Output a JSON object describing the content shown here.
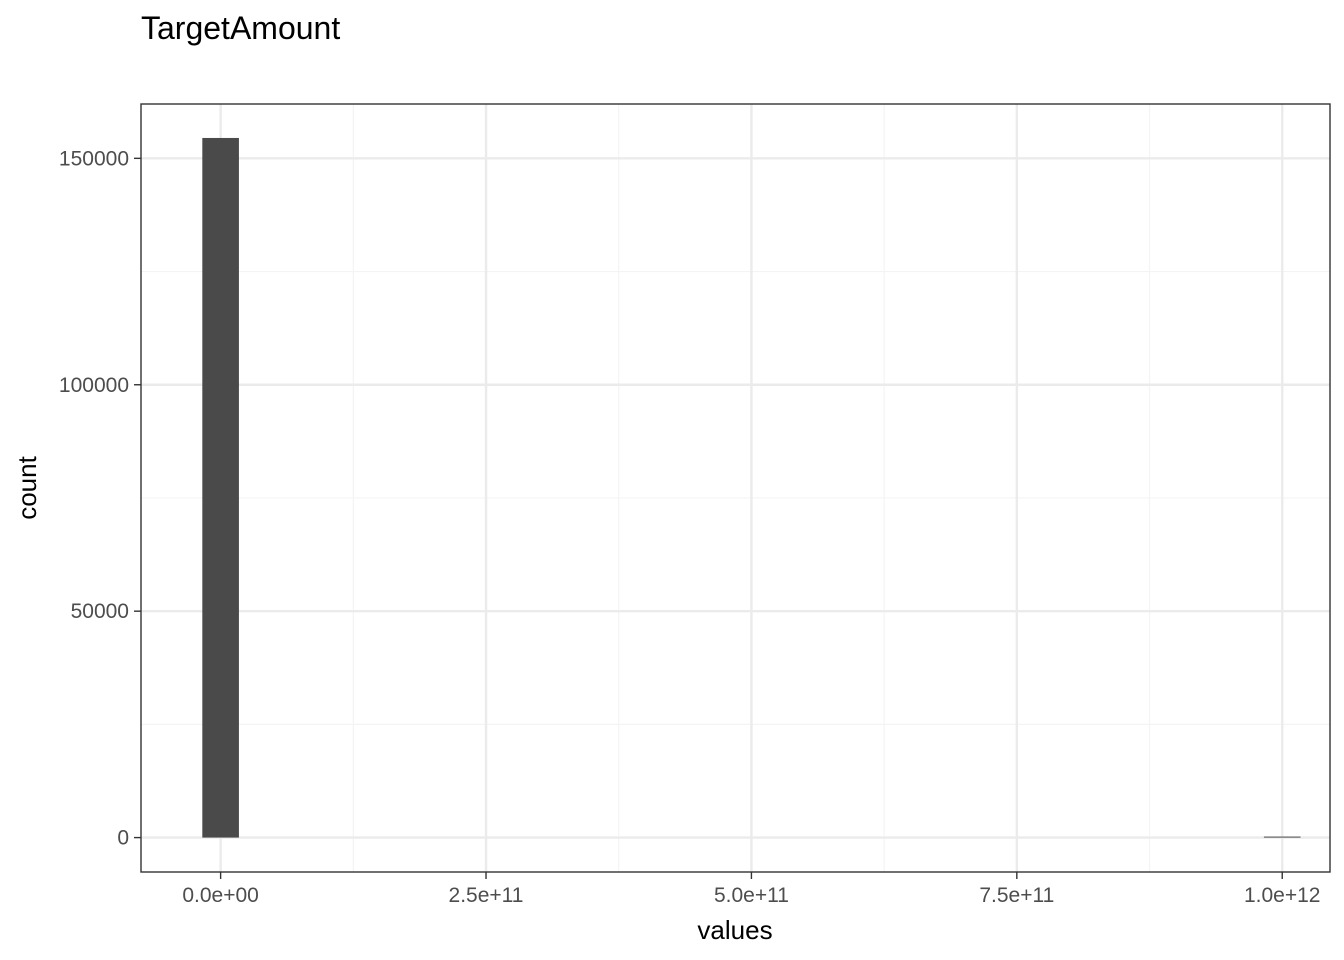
{
  "chart_data": {
    "type": "bar",
    "title": "TargetAmount",
    "xlabel": "values",
    "ylabel": "count",
    "xlim": [
      -75000000000,
      1045000000000
    ],
    "ylim": [
      -7600,
      162000
    ],
    "x_ticks": [
      {
        "value": 0,
        "label": "0.0e+00"
      },
      {
        "value": 250000000000,
        "label": "2.5e+11"
      },
      {
        "value": 500000000000,
        "label": "5.0e+11"
      },
      {
        "value": 750000000000,
        "label": "7.5e+11"
      },
      {
        "value": 1000000000000,
        "label": "1.0e+12"
      }
    ],
    "y_ticks": [
      {
        "value": 0,
        "label": "0"
      },
      {
        "value": 50000,
        "label": "50000"
      },
      {
        "value": 100000,
        "label": "100000"
      },
      {
        "value": 150000,
        "label": "150000"
      }
    ],
    "bin_width": 34500000000,
    "bins": [
      {
        "x": 0,
        "count": 154500
      },
      {
        "x": 1000000000000,
        "count": 1
      }
    ],
    "grid": true,
    "legend": "none",
    "colors": {
      "bar_fill": "#4a4a4a",
      "panel_border": "#333333",
      "grid_major": "#ebebeb",
      "grid_minor": "#f4f4f4",
      "background": "#ffffff"
    }
  }
}
